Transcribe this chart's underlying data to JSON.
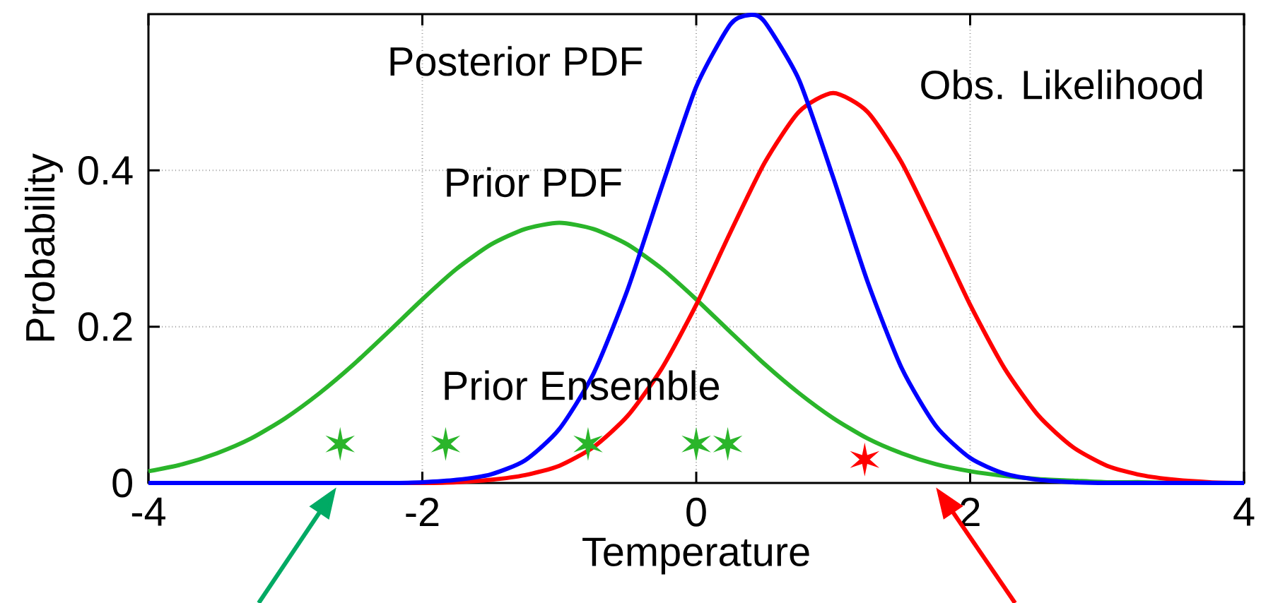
{
  "chart_data": {
    "type": "line",
    "xlabel": "Temperature",
    "ylabel": "Probability",
    "xlim": [
      -4,
      4
    ],
    "ylim": [
      0,
      0.6
    ],
    "xticks": [
      -4,
      -2,
      0,
      2,
      4
    ],
    "yticks": [
      0,
      0.2,
      0.4
    ],
    "grid": true,
    "x": [
      -4,
      -3.75,
      -3.5,
      -3.25,
      -3,
      -2.75,
      -2.5,
      -2.25,
      -2,
      -1.75,
      -1.5,
      -1.25,
      -1,
      -0.75,
      -0.5,
      -0.25,
      0,
      0.25,
      0.5,
      0.75,
      1,
      1.25,
      1.5,
      1.75,
      2,
      2.25,
      2.5,
      2.75,
      3,
      3.25,
      3.5,
      3.75,
      4
    ],
    "series": [
      {
        "name": "Prior PDF",
        "color": "#2ab52a",
        "values": [
          0.015,
          0.024,
          0.038,
          0.057,
          0.083,
          0.115,
          0.152,
          0.193,
          0.235,
          0.274,
          0.305,
          0.325,
          0.333,
          0.325,
          0.305,
          0.274,
          0.235,
          0.193,
          0.152,
          0.115,
          0.083,
          0.057,
          0.038,
          0.024,
          0.015,
          0.009,
          0.005,
          0.003,
          0.001,
          0.001,
          0,
          0,
          0
        ]
      },
      {
        "name": "Obs. Likelihood",
        "color": "#ff0000",
        "values": [
          null,
          null,
          null,
          null,
          null,
          null,
          null,
          0,
          0,
          0.001,
          0.004,
          0.01,
          0.022,
          0.046,
          0.086,
          0.147,
          0.228,
          0.321,
          0.41,
          0.475,
          0.499,
          0.475,
          0.41,
          0.321,
          0.228,
          0.147,
          0.086,
          0.046,
          0.022,
          0.01,
          0.004,
          0.001,
          0
        ]
      },
      {
        "name": "Posterior PDF",
        "color": "#0000ff",
        "x": [
          -4,
          -3.75,
          -3.5,
          -3.25,
          -3,
          -2.75,
          -2.5,
          -2.25,
          -2,
          -1.75,
          -1.5,
          -1.25,
          -1,
          -0.75,
          -0.5,
          -0.25,
          0,
          0.25,
          0.4,
          0.5,
          0.75,
          1,
          1.25,
          1.5,
          1.75,
          2,
          2.25,
          2.5,
          2.75,
          3,
          3.25,
          3.5,
          3.75,
          4
        ],
        "values": [
          0,
          0,
          0,
          0,
          0,
          0,
          0,
          0,
          0.001,
          0.004,
          0.011,
          0.029,
          0.069,
          0.14,
          0.248,
          0.38,
          0.507,
          0.587,
          0.599,
          0.59,
          0.516,
          0.391,
          0.258,
          0.147,
          0.073,
          0.032,
          0.012,
          0.004,
          0.001,
          0,
          0,
          0,
          0,
          0
        ]
      },
      {
        "name": "Prior Ensemble",
        "type": "scatter",
        "marker": "cross",
        "color": "#2ab52a",
        "x": [
          -2.6,
          -1.83,
          -0.79,
          0,
          0.23
        ],
        "values": [
          0.05,
          0.05,
          0.05,
          0.05,
          0.05
        ]
      },
      {
        "type": "scatter",
        "marker": "cross",
        "color": "#ff0000",
        "x": [
          1.23
        ],
        "values": [
          0.03
        ]
      }
    ]
  }
}
